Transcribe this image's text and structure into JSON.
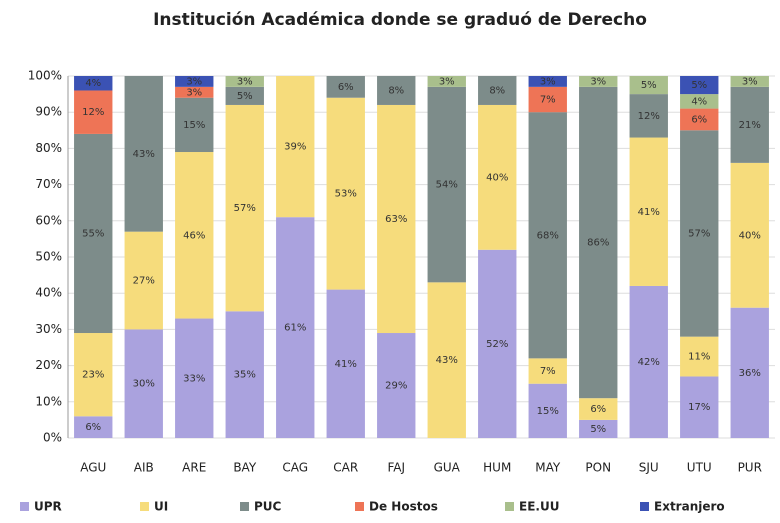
{
  "chart_data": {
    "type": "stacked_bar",
    "title": "Institución Académica donde se graduó de Derecho",
    "categories": [
      "AGU",
      "AIB",
      "ARE",
      "BAY",
      "CAG",
      "CAR",
      "FAJ",
      "GUA",
      "HUM",
      "MAY",
      "PON",
      "SJU",
      "UTU",
      "PUR"
    ],
    "series": [
      {
        "name": "UPR",
        "color": "#aaa2de",
        "values": [
          6,
          30,
          33,
          35,
          61,
          41,
          29,
          0,
          52,
          15,
          5,
          42,
          17,
          36
        ],
        "value_labels": [
          "6%",
          "30%",
          "33%",
          "35%",
          "61%",
          "41%",
          "29%",
          null,
          "52%",
          "15%",
          "5%",
          "42%",
          "17%",
          "36%"
        ]
      },
      {
        "name": "UI",
        "color": "#f6dc7c",
        "values": [
          23,
          27,
          46,
          57,
          39,
          53,
          63,
          43,
          40,
          7,
          6,
          41,
          11,
          40
        ],
        "value_labels": [
          "23%",
          "27%",
          "46%",
          "57%",
          "39%",
          "53%",
          "63%",
          "43%",
          "40%",
          "7%",
          "6%",
          "41%",
          "11%",
          "40%"
        ]
      },
      {
        "name": "PUC",
        "color": "#7d8c8a",
        "values": [
          55,
          43,
          15,
          5,
          0,
          6,
          8,
          54,
          8,
          68,
          86,
          12,
          57,
          21
        ],
        "value_labels": [
          "55%",
          "43%",
          "15%",
          "5%",
          null,
          "6%",
          "8%",
          "54%",
          "8%",
          "68%",
          "86%",
          "12%",
          "57%",
          "21%"
        ]
      },
      {
        "name": "De Hostos",
        "color": "#ee7456",
        "values": [
          12,
          0,
          3,
          0,
          0,
          0,
          0,
          0,
          0,
          7,
          0,
          0,
          6,
          0
        ],
        "value_labels": [
          "12%",
          null,
          "3%",
          null,
          null,
          null,
          null,
          null,
          null,
          "7%",
          null,
          null,
          "6%",
          null
        ]
      },
      {
        "name": "EE.UU",
        "color": "#a9bf8c",
        "values": [
          0,
          0,
          0,
          3,
          0,
          0,
          0,
          3,
          0,
          0,
          3,
          5,
          4,
          3
        ],
        "value_labels": [
          null,
          null,
          null,
          "3%",
          null,
          null,
          null,
          "3%",
          null,
          null,
          "3%",
          "5%",
          "4%",
          "3%"
        ]
      },
      {
        "name": "Extranjero",
        "color": "#3b52b4",
        "values": [
          4,
          0,
          3,
          0,
          0,
          0,
          0,
          0,
          0,
          3,
          0,
          0,
          5,
          0
        ],
        "value_labels": [
          "4%",
          null,
          "3%",
          null,
          null,
          null,
          null,
          null,
          null,
          "3%",
          null,
          null,
          "5%",
          null
        ]
      }
    ],
    "ylim": [
      0,
      100
    ],
    "yticks": [
      {
        "value": 0,
        "label": "0%"
      },
      {
        "value": 10,
        "label": "10%"
      },
      {
        "value": 20,
        "label": "20%"
      },
      {
        "value": 30,
        "label": "30%"
      },
      {
        "value": 40,
        "label": "40%"
      },
      {
        "value": 50,
        "label": "50%"
      },
      {
        "value": 60,
        "label": "60%"
      },
      {
        "value": 70,
        "label": "70%"
      },
      {
        "value": 80,
        "label": "80%"
      },
      {
        "value": 90,
        "label": "90%"
      },
      {
        "value": 100,
        "label": "100%"
      }
    ],
    "grid": true
  }
}
